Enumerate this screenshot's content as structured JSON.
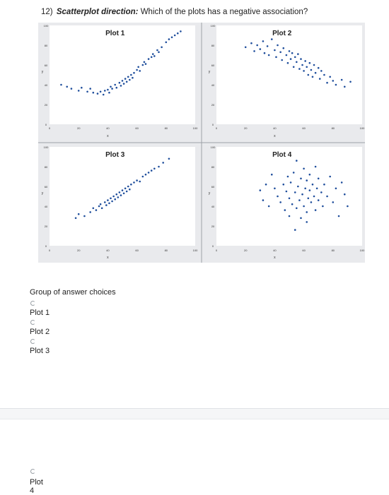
{
  "question": {
    "number": "12)",
    "label": "Scatterplot direction:",
    "text": " Which of the plots has a negative association?"
  },
  "colors": {
    "point": "#1f4e9c",
    "panel_bg": "#ffffff",
    "figure_bg": "#e9eaed"
  },
  "chart_data": [
    {
      "type": "scatter",
      "title": "Plot 1",
      "xlabel": "x",
      "ylabel": "y",
      "xlim": [
        0,
        100
      ],
      "ylim": [
        0,
        100
      ],
      "xticks": [
        0,
        20,
        40,
        60,
        80,
        100
      ],
      "yticks": [
        0,
        20,
        40,
        60,
        80,
        100
      ],
      "points": [
        [
          8,
          40
        ],
        [
          12,
          38
        ],
        [
          15,
          36
        ],
        [
          20,
          34
        ],
        [
          22,
          37
        ],
        [
          26,
          33
        ],
        [
          28,
          36
        ],
        [
          30,
          32
        ],
        [
          33,
          31
        ],
        [
          35,
          33
        ],
        [
          37,
          30
        ],
        [
          38,
          34
        ],
        [
          40,
          35
        ],
        [
          41,
          32
        ],
        [
          42,
          38
        ],
        [
          43,
          36
        ],
        [
          45,
          40
        ],
        [
          46,
          37
        ],
        [
          48,
          42
        ],
        [
          49,
          39
        ],
        [
          50,
          44
        ],
        [
          51,
          41
        ],
        [
          52,
          46
        ],
        [
          53,
          43
        ],
        [
          54,
          48
        ],
        [
          55,
          45
        ],
        [
          56,
          50
        ],
        [
          57,
          47
        ],
        [
          58,
          52
        ],
        [
          60,
          55
        ],
        [
          61,
          58
        ],
        [
          62,
          54
        ],
        [
          64,
          60
        ],
        [
          65,
          63
        ],
        [
          66,
          61
        ],
        [
          68,
          66
        ],
        [
          70,
          68
        ],
        [
          71,
          71
        ],
        [
          72,
          69
        ],
        [
          74,
          75
        ],
        [
          75,
          73
        ],
        [
          77,
          78
        ],
        [
          80,
          83
        ],
        [
          82,
          86
        ],
        [
          84,
          88
        ],
        [
          86,
          90
        ],
        [
          88,
          92
        ],
        [
          90,
          94
        ]
      ]
    },
    {
      "type": "scatter",
      "title": "Plot 2",
      "xlabel": "x",
      "ylabel": "y",
      "xlim": [
        0,
        100
      ],
      "ylim": [
        0,
        100
      ],
      "xticks": [
        0,
        20,
        40,
        60,
        80,
        100
      ],
      "yticks": [
        0,
        20,
        40,
        60,
        80,
        100
      ],
      "points": [
        [
          20,
          78
        ],
        [
          24,
          82
        ],
        [
          26,
          74
        ],
        [
          28,
          80
        ],
        [
          30,
          76
        ],
        [
          32,
          84
        ],
        [
          33,
          72
        ],
        [
          35,
          79
        ],
        [
          36,
          70
        ],
        [
          38,
          86
        ],
        [
          40,
          75
        ],
        [
          41,
          68
        ],
        [
          42,
          80
        ],
        [
          44,
          73
        ],
        [
          45,
          65
        ],
        [
          46,
          77
        ],
        [
          48,
          70
        ],
        [
          49,
          62
        ],
        [
          50,
          74
        ],
        [
          51,
          66
        ],
        [
          52,
          72
        ],
        [
          53,
          58
        ],
        [
          54,
          68
        ],
        [
          55,
          63
        ],
        [
          56,
          71
        ],
        [
          57,
          56
        ],
        [
          58,
          66
        ],
        [
          59,
          60
        ],
        [
          60,
          54
        ],
        [
          61,
          64
        ],
        [
          62,
          58
        ],
        [
          63,
          50
        ],
        [
          64,
          62
        ],
        [
          65,
          55
        ],
        [
          66,
          48
        ],
        [
          67,
          60
        ],
        [
          68,
          52
        ],
        [
          70,
          57
        ],
        [
          71,
          46
        ],
        [
          72,
          54
        ],
        [
          74,
          50
        ],
        [
          76,
          42
        ],
        [
          78,
          48
        ],
        [
          80,
          44
        ],
        [
          82,
          40
        ],
        [
          86,
          45
        ],
        [
          88,
          38
        ],
        [
          92,
          43
        ]
      ]
    },
    {
      "type": "scatter",
      "title": "Plot 3",
      "xlabel": "x",
      "ylabel": "y",
      "xlim": [
        0,
        100
      ],
      "ylim": [
        0,
        100
      ],
      "xticks": [
        0,
        20,
        40,
        60,
        80,
        100
      ],
      "yticks": [
        0,
        20,
        40,
        60,
        80,
        100
      ],
      "points": [
        [
          18,
          28
        ],
        [
          20,
          32
        ],
        [
          24,
          30
        ],
        [
          28,
          34
        ],
        [
          30,
          38
        ],
        [
          32,
          36
        ],
        [
          34,
          40
        ],
        [
          35,
          42
        ],
        [
          36,
          38
        ],
        [
          38,
          44
        ],
        [
          39,
          41
        ],
        [
          40,
          46
        ],
        [
          41,
          43
        ],
        [
          42,
          48
        ],
        [
          43,
          45
        ],
        [
          44,
          50
        ],
        [
          45,
          47
        ],
        [
          46,
          52
        ],
        [
          47,
          49
        ],
        [
          48,
          54
        ],
        [
          49,
          51
        ],
        [
          50,
          56
        ],
        [
          51,
          53
        ],
        [
          52,
          58
        ],
        [
          53,
          55
        ],
        [
          54,
          60
        ],
        [
          55,
          57
        ],
        [
          56,
          62
        ],
        [
          58,
          64
        ],
        [
          60,
          66
        ],
        [
          62,
          65
        ],
        [
          64,
          70
        ],
        [
          66,
          72
        ],
        [
          68,
          74
        ],
        [
          70,
          76
        ],
        [
          72,
          78
        ],
        [
          75,
          80
        ],
        [
          78,
          84
        ],
        [
          82,
          88
        ]
      ]
    },
    {
      "type": "scatter",
      "title": "Plot 4",
      "xlabel": "x",
      "ylabel": "y",
      "xlim": [
        0,
        100
      ],
      "ylim": [
        0,
        100
      ],
      "xticks": [
        0,
        20,
        40,
        60,
        80,
        100
      ],
      "yticks": [
        0,
        20,
        40,
        60,
        80,
        100
      ],
      "points": [
        [
          40,
          58
        ],
        [
          42,
          50
        ],
        [
          44,
          44
        ],
        [
          46,
          62
        ],
        [
          47,
          36
        ],
        [
          48,
          55
        ],
        [
          49,
          70
        ],
        [
          50,
          48
        ],
        [
          50,
          30
        ],
        [
          51,
          64
        ],
        [
          52,
          42
        ],
        [
          53,
          74
        ],
        [
          54,
          54
        ],
        [
          55,
          38
        ],
        [
          55,
          86
        ],
        [
          56,
          60
        ],
        [
          57,
          46
        ],
        [
          58,
          68
        ],
        [
          58,
          28
        ],
        [
          59,
          52
        ],
        [
          60,
          78
        ],
        [
          60,
          40
        ],
        [
          61,
          58
        ],
        [
          62,
          66
        ],
        [
          62,
          34
        ],
        [
          63,
          48
        ],
        [
          64,
          72
        ],
        [
          64,
          56
        ],
        [
          65,
          44
        ],
        [
          66,
          62
        ],
        [
          67,
          50
        ],
        [
          68,
          80
        ],
        [
          68,
          36
        ],
        [
          69,
          58
        ],
        [
          70,
          46
        ],
        [
          70,
          68
        ],
        [
          72,
          54
        ],
        [
          73,
          40
        ],
        [
          74,
          62
        ],
        [
          76,
          50
        ],
        [
          78,
          70
        ],
        [
          80,
          44
        ],
        [
          82,
          58
        ],
        [
          84,
          30
        ],
        [
          86,
          64
        ],
        [
          88,
          52
        ],
        [
          90,
          40
        ],
        [
          30,
          56
        ],
        [
          34,
          62
        ],
        [
          32,
          46
        ],
        [
          38,
          72
        ],
        [
          36,
          40
        ],
        [
          54,
          16
        ],
        [
          62,
          24
        ]
      ]
    }
  ],
  "choices": {
    "title": "Group of answer choices",
    "options": [
      "Plot 1",
      "Plot 2",
      "Plot 3",
      "Plot 4"
    ]
  }
}
